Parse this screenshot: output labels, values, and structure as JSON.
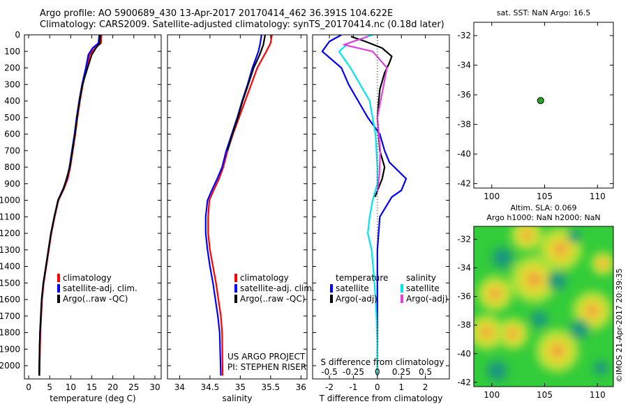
{
  "header": {
    "line1": "Argo profile: AO 5900689_430 13-Apr-2017 20170414_462 36.391S 104.622E",
    "line2": "Climatology: CARS2009. Satellite-adjusted climatology: synTS_20170414.nc (0.18d later)"
  },
  "credit": "US ARGO PROJECT",
  "pi": "PI: STEPHEN RISER",
  "watermark": "©IMOS 21-Apr-2017 20:39:35",
  "colors": {
    "climatology": "#ff0000",
    "satellite": "#0000ff",
    "argo": "#000000",
    "sal_satellite": "#00e5ee",
    "sal_argo": "#e040e0",
    "marker": "#22aa22"
  },
  "chart_data": [
    {
      "id": "temperature",
      "type": "line",
      "xlabel": "temperature (deg C)",
      "ylabel": "",
      "xlim": [
        -1,
        31.5
      ],
      "ylim": [
        2080,
        0
      ],
      "xticks": [
        0,
        5,
        10,
        15,
        20,
        25,
        30
      ],
      "yticks": [
        0,
        100,
        200,
        300,
        400,
        500,
        600,
        700,
        800,
        900,
        1000,
        1100,
        1200,
        1300,
        1400,
        1500,
        1600,
        1700,
        1800,
        1900,
        2000
      ],
      "legend": [
        "climatology",
        "satellite-adj. clim.",
        "Argo(..raw -QC)"
      ],
      "series": [
        {
          "name": "climatology",
          "color": "#ff0000",
          "x": [
            17.3,
            17.2,
            15.8,
            14.5,
            13.8,
            12.9,
            12.2,
            11.6,
            11.1,
            10.5,
            9.9,
            9.3,
            8.4,
            7.1,
            6.2,
            5.4,
            4.8,
            4.2,
            3.6,
            3.2,
            3.0,
            2.8,
            2.7,
            2.6
          ],
          "y": [
            0,
            50,
            80,
            120,
            200,
            300,
            400,
            500,
            600,
            700,
            800,
            870,
            930,
            1000,
            1100,
            1200,
            1300,
            1400,
            1500,
            1600,
            1700,
            1800,
            1900,
            2060
          ]
        },
        {
          "name": "satellite-adj. clim.",
          "color": "#0000ff",
          "x": [
            16.8,
            16.6,
            15.2,
            14.2,
            13.6,
            12.7,
            12.0,
            11.4,
            10.9,
            10.3,
            9.7,
            9.1,
            8.2,
            7.0,
            6.1,
            5.3,
            4.7,
            4.1,
            3.5,
            3.1,
            2.9,
            2.7,
            2.6,
            2.5
          ],
          "y": [
            0,
            50,
            80,
            120,
            200,
            300,
            400,
            500,
            600,
            700,
            800,
            870,
            930,
            1000,
            1100,
            1200,
            1300,
            1400,
            1500,
            1600,
            1700,
            1800,
            1900,
            2060
          ]
        },
        {
          "name": "Argo(..raw -QC)",
          "color": "#000000",
          "x": [
            17.0,
            16.9,
            16.0,
            15.0,
            14.0,
            12.8,
            12.1,
            11.5,
            11.0,
            10.4,
            9.8,
            9.0,
            8.3,
            7.0,
            6.1,
            5.3,
            4.7,
            4.1,
            3.5,
            3.1,
            2.9,
            2.7,
            2.6,
            2.5
          ],
          "y": [
            0,
            50,
            80,
            120,
            200,
            300,
            400,
            500,
            600,
            700,
            800,
            870,
            930,
            1000,
            1100,
            1200,
            1300,
            1400,
            1500,
            1600,
            1700,
            1800,
            1900,
            2060
          ]
        }
      ]
    },
    {
      "id": "salinity",
      "type": "line",
      "xlabel": "salinity",
      "xlim": [
        33.8,
        36.1
      ],
      "ylim": [
        2080,
        0
      ],
      "xticks": [
        34,
        34.5,
        35,
        35.5,
        36
      ],
      "legend": [
        "climatology",
        "satellite-adj. clim.",
        "Argo(..raw -QC)"
      ],
      "series": [
        {
          "name": "climatology",
          "color": "#ff0000",
          "x": [
            35.52,
            35.5,
            35.43,
            35.28,
            35.18,
            35.08,
            34.98,
            34.88,
            34.79,
            34.72,
            34.65,
            34.56,
            34.49,
            34.47,
            34.47,
            34.5,
            34.55,
            34.6,
            34.64,
            34.68,
            34.7,
            34.71
          ],
          "y": [
            0,
            50,
            100,
            200,
            300,
            400,
            500,
            600,
            700,
            800,
            870,
            940,
            1000,
            1100,
            1200,
            1300,
            1400,
            1500,
            1600,
            1700,
            1800,
            2060
          ]
        },
        {
          "name": "satellite-adj. clim.",
          "color": "#0000ff",
          "x": [
            35.35,
            35.33,
            35.3,
            35.2,
            35.12,
            35.03,
            34.95,
            34.86,
            34.77,
            34.7,
            34.62,
            34.53,
            34.46,
            34.43,
            34.43,
            34.46,
            34.5,
            34.55,
            34.59,
            34.63,
            34.66,
            34.68
          ],
          "y": [
            0,
            50,
            100,
            200,
            300,
            400,
            500,
            600,
            700,
            800,
            870,
            940,
            1000,
            1100,
            1200,
            1300,
            1400,
            1500,
            1600,
            1700,
            1800,
            2060
          ]
        },
        {
          "name": "Argo(..raw -QC)",
          "color": "#000000",
          "x": [
            35.41,
            35.38,
            35.32,
            35.22,
            35.13,
            35.04,
            34.96,
            34.87,
            34.79
          ],
          "y": [
            0,
            60,
            120,
            200,
            300,
            400,
            500,
            600,
            700
          ]
        }
      ]
    },
    {
      "id": "difference",
      "type": "line",
      "xlabel": "T difference from climatology",
      "xlabel2": "S difference from climatology",
      "xlim": [
        -2.7,
        3.0
      ],
      "ylim": [
        2080,
        0
      ],
      "xticks": [
        -2,
        -1,
        0,
        1,
        2
      ],
      "xticks2": [
        "-0.5",
        "-0.25",
        "0",
        "0.25",
        "0.5"
      ],
      "legend_temperature": [
        "temperature",
        "satellite",
        "Argo(-adj)"
      ],
      "legend_salinity": [
        "salinity",
        "satellite",
        "Argo(-adj)"
      ],
      "series": [
        {
          "name": "temperature satellite",
          "color": "#0000ff",
          "x": [
            -1.5,
            -2.0,
            -2.3,
            -1.5,
            -1.2,
            -0.8,
            -0.4,
            0.1,
            0.3,
            0.5,
            1.2,
            1.0,
            0.6,
            0.1,
            0.0,
            0.0,
            0.0,
            0.0,
            0.0
          ],
          "y": [
            0,
            40,
            100,
            200,
            300,
            400,
            500,
            600,
            700,
            770,
            870,
            940,
            980,
            1100,
            1300,
            1500,
            1700,
            1900,
            2060
          ]
        },
        {
          "name": "temperature Argo(-adj)",
          "color": "#000000",
          "x": [
            -1.1,
            -0.5,
            0.2,
            0.6,
            0.5,
            0.3,
            0.1,
            0.0,
            0.1,
            0.3,
            0.2,
            -0.1
          ],
          "y": [
            10,
            40,
            80,
            130,
            170,
            230,
            330,
            500,
            700,
            800,
            870,
            980
          ]
        },
        {
          "name": "salinity satellite",
          "color": "#00e5ee",
          "x": [
            -0.05,
            -0.3,
            -0.4,
            -0.28,
            -0.18,
            -0.08,
            -0.02,
            0.0,
            0.0,
            -0.05,
            -0.08,
            -0.1,
            -0.06,
            -0.03,
            -0.01,
            0.0,
            0.0
          ],
          "y": [
            0,
            50,
            100,
            200,
            300,
            400,
            600,
            800,
            900,
            1000,
            1100,
            1200,
            1300,
            1500,
            1700,
            1900,
            2060
          ]
        },
        {
          "name": "salinity Argo(-adj)",
          "color": "#e040e0",
          "x": [
            -0.1,
            -0.35,
            -0.05,
            0.1,
            0.05,
            0.0,
            0.03,
            0.02,
            0.0
          ],
          "y": [
            10,
            60,
            100,
            200,
            350,
            500,
            700,
            850,
            950
          ]
        }
      ]
    },
    {
      "id": "location-sst",
      "type": "scatter",
      "title": "sat. SST: NaN Argo: 16.5",
      "xlim": [
        98.3,
        111.5
      ],
      "ylim": [
        -42.3,
        -31.1
      ],
      "xticks": [
        100,
        105,
        110
      ],
      "yticks": [
        -32,
        -34,
        -36,
        -38,
        -40,
        -42
      ],
      "points": [
        {
          "x": 104.62,
          "y": -36.39
        }
      ]
    },
    {
      "id": "sla-map",
      "type": "heatmap",
      "title": "Altim. SLA: 0.069",
      "subtitle": "Argo h1000: NaN h2000: NaN",
      "xlim": [
        98.3,
        111.5
      ],
      "ylim": [
        -42.3,
        -31.1
      ],
      "xticks": [
        100,
        105,
        110
      ],
      "yticks": [
        -32,
        -34,
        -36,
        -38,
        -40,
        -42
      ],
      "background": "#33cc3a",
      "warm_blobs": [
        {
          "lon": 103.3,
          "lat": -31.7,
          "r": 0.8
        },
        {
          "lon": 106.5,
          "lat": -32.7,
          "r": 1.1
        },
        {
          "lon": 104.0,
          "lat": -34.8,
          "r": 1.2
        },
        {
          "lon": 100.3,
          "lat": -35.8,
          "r": 0.9
        },
        {
          "lon": 109.5,
          "lat": -37.0,
          "r": 1.0
        },
        {
          "lon": 99.5,
          "lat": -38.5,
          "r": 0.9
        },
        {
          "lon": 102.0,
          "lat": -38.6,
          "r": 0.8
        },
        {
          "lon": 106.2,
          "lat": -39.8,
          "r": 1.1
        },
        {
          "lon": 110.5,
          "lat": -33.7,
          "r": 0.6
        }
      ],
      "cool_blobs": [
        {
          "lon": 106.2,
          "lat": -34.9,
          "r": 0.9
        },
        {
          "lon": 101.0,
          "lat": -33.3,
          "r": 1.0
        },
        {
          "lon": 104.5,
          "lat": -37.6,
          "r": 0.8
        },
        {
          "lon": 108.3,
          "lat": -38.3,
          "r": 0.9
        },
        {
          "lon": 100.5,
          "lat": -41.2,
          "r": 1.0
        },
        {
          "lon": 110.3,
          "lat": -41.0,
          "r": 0.7
        },
        {
          "lon": 107.8,
          "lat": -31.8,
          "r": 0.6
        }
      ]
    }
  ]
}
